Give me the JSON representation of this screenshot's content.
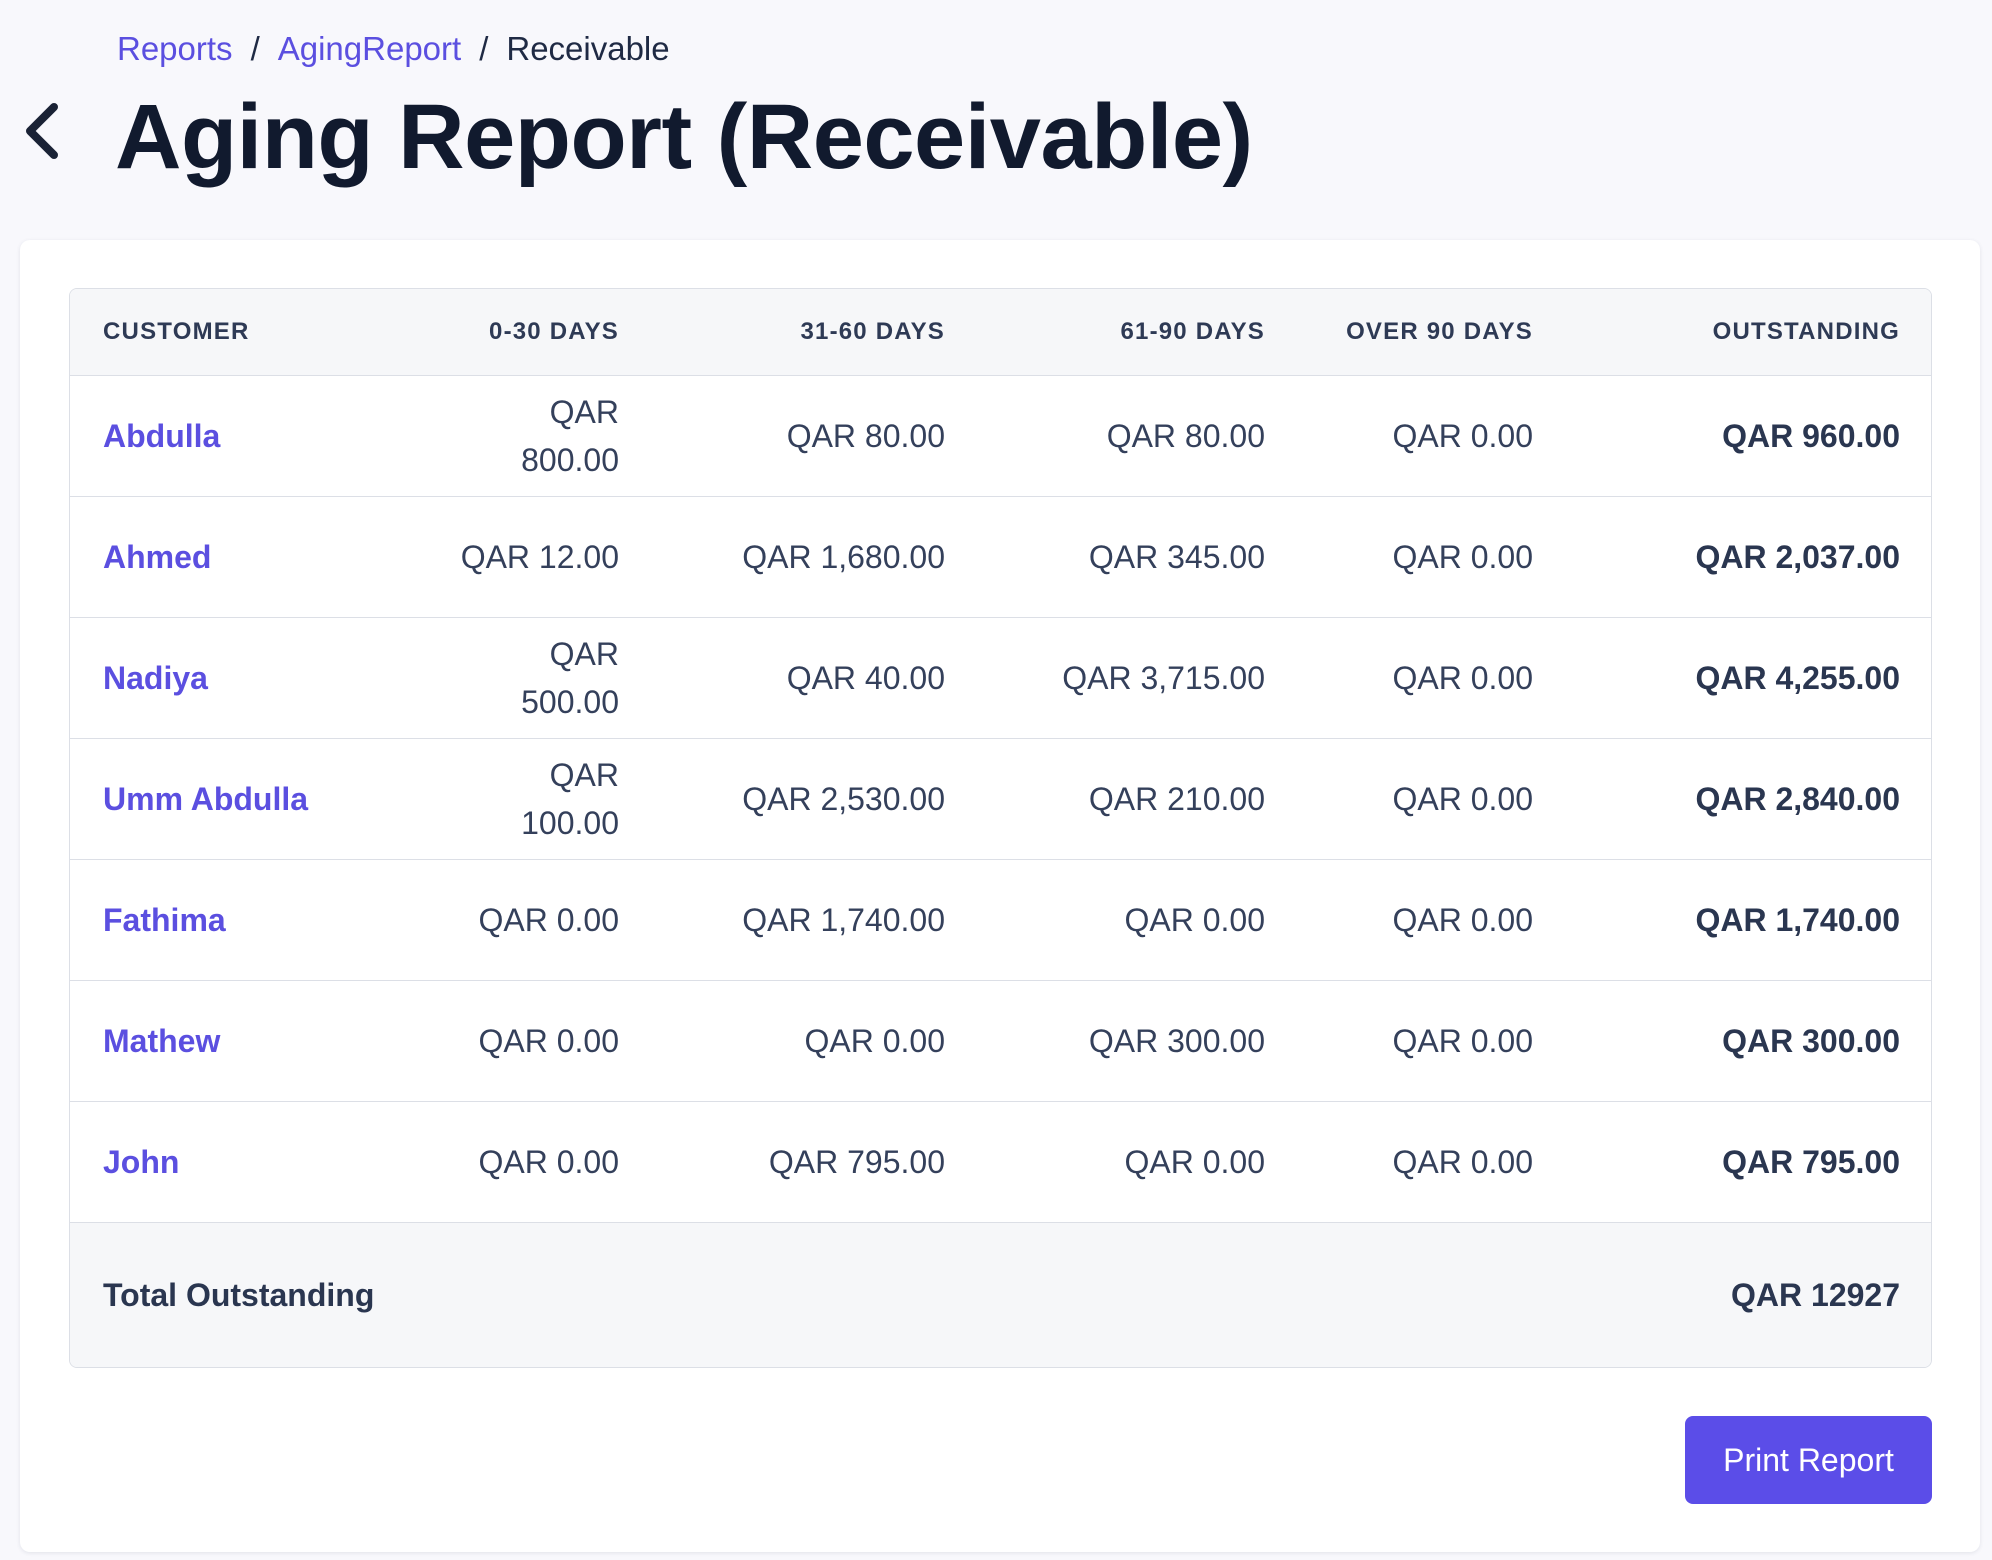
{
  "breadcrumb": {
    "items": [
      {
        "label": "Reports",
        "link": true
      },
      {
        "label": "AgingReport",
        "link": true
      },
      {
        "label": "Receivable",
        "link": false
      }
    ],
    "separator": "/"
  },
  "header": {
    "title": "Aging Report (Receivable)",
    "back_icon": "chevron-left-icon"
  },
  "table": {
    "headers": {
      "customer": "CUSTOMER",
      "d0_30": "0-30 DAYS",
      "d31_60": "31-60 DAYS",
      "d61_90": "61-90 DAYS",
      "over90": "OVER 90 DAYS",
      "outstanding": "OUTSTANDING"
    },
    "rows": [
      {
        "customer": "Abdulla",
        "d0_30": "QAR 800.00",
        "d31_60": "QAR 80.00",
        "d61_90": "QAR 80.00",
        "over90": "QAR 0.00",
        "outstanding": "QAR 960.00"
      },
      {
        "customer": "Ahmed",
        "d0_30": "QAR 12.00",
        "d31_60": "QAR 1,680.00",
        "d61_90": "QAR 345.00",
        "over90": "QAR 0.00",
        "outstanding": "QAR 2,037.00"
      },
      {
        "customer": "Nadiya",
        "d0_30": "QAR 500.00",
        "d31_60": "QAR 40.00",
        "d61_90": "QAR 3,715.00",
        "over90": "QAR 0.00",
        "outstanding": "QAR 4,255.00"
      },
      {
        "customer": "Umm Abdulla",
        "d0_30": "QAR 100.00",
        "d31_60": "QAR 2,530.00",
        "d61_90": "QAR 210.00",
        "over90": "QAR 0.00",
        "outstanding": "QAR 2,840.00"
      },
      {
        "customer": "Fathima",
        "d0_30": "QAR 0.00",
        "d31_60": "QAR 1,740.00",
        "d61_90": "QAR 0.00",
        "over90": "QAR 0.00",
        "outstanding": "QAR 1,740.00"
      },
      {
        "customer": "Mathew",
        "d0_30": "QAR 0.00",
        "d31_60": "QAR 0.00",
        "d61_90": "QAR 300.00",
        "over90": "QAR 0.00",
        "outstanding": "QAR 300.00"
      },
      {
        "customer": "John",
        "d0_30": "QAR 0.00",
        "d31_60": "QAR 795.00",
        "d61_90": "QAR 0.00",
        "over90": "QAR 0.00",
        "outstanding": "QAR 795.00"
      }
    ],
    "total": {
      "label": "Total Outstanding",
      "value": "QAR 12927"
    }
  },
  "actions": {
    "print_label": "Print Report"
  },
  "colors": {
    "accent": "#5b4de8",
    "link": "#5b4fe0",
    "text": "#1f2a44",
    "header_bg": "#f6f7f9"
  }
}
